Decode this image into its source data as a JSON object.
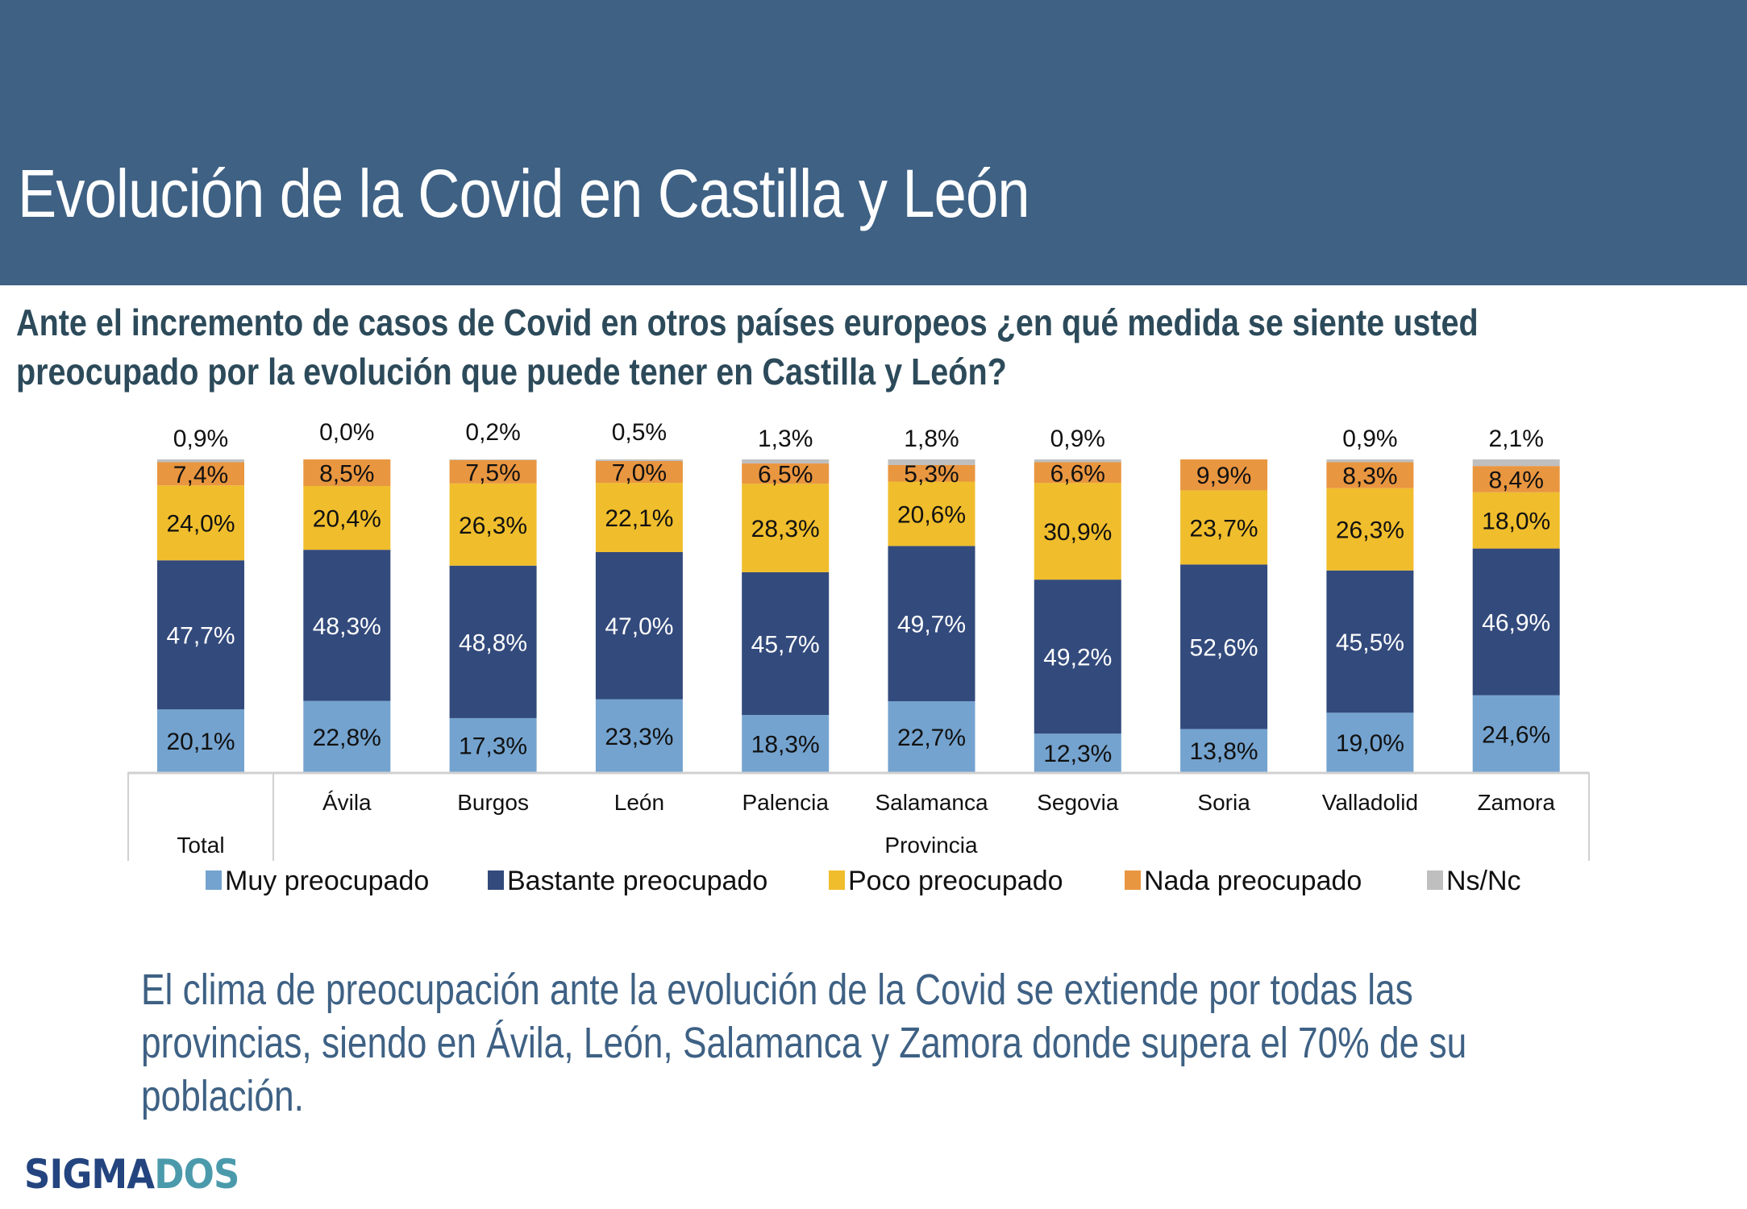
{
  "header": {
    "title": "Evolución de la Covid en Castilla y León"
  },
  "question": {
    "lines": [
      " Ante el incremento de casos de Covid en otros países europeos ¿en qué medida se siente usted",
      "preocupado por la evolución que puede tener en Castilla y León?"
    ]
  },
  "chart_data": {
    "type": "bar",
    "stacked": true,
    "normalized": true,
    "title": "",
    "xlabel": "",
    "ylabel": "",
    "ylim": [
      0,
      100
    ],
    "grid": false,
    "legend_position": "bottom",
    "categories": [
      "Total",
      "Ávila",
      "Burgos",
      "León",
      "Palencia",
      "Salamanca",
      "Segovia",
      "Soria",
      "Valladolid",
      "Zamora"
    ],
    "group_labels": [
      {
        "label": "Total",
        "categories": [
          "Total"
        ]
      },
      {
        "label": "Provincia",
        "categories": [
          "Ávila",
          "Burgos",
          "León",
          "Palencia",
          "Salamanca",
          "Segovia",
          "Soria",
          "Valladolid",
          "Zamora"
        ]
      }
    ],
    "series": [
      {
        "name": "Muy preocupado",
        "color": "#74a3cf",
        "label_color": "#111111",
        "values": [
          20.1,
          22.8,
          17.3,
          23.3,
          18.3,
          22.7,
          12.3,
          13.8,
          19.0,
          24.6
        ],
        "labels": [
          "20,1%",
          "22,8%",
          "17,3%",
          "23,3%",
          "18,3%",
          "22,7%",
          "12,3%",
          "13,8%",
          "19,0%",
          "24,6%"
        ]
      },
      {
        "name": "Bastante preocupado",
        "color": "#334a7c",
        "label_color": "#ffffff",
        "values": [
          47.7,
          48.3,
          48.8,
          47.0,
          45.7,
          49.7,
          49.2,
          52.6,
          45.5,
          46.9
        ],
        "labels": [
          "47,7%",
          "48,3%",
          "48,8%",
          "47,0%",
          "45,7%",
          "49,7%",
          "49,2%",
          "52,6%",
          "45,5%",
          "46,9%"
        ]
      },
      {
        "name": "Poco preocupado",
        "color": "#f0bd2c",
        "label_color": "#111111",
        "values": [
          24.0,
          20.4,
          26.3,
          22.1,
          28.3,
          20.6,
          30.9,
          23.7,
          26.3,
          18.0
        ],
        "labels": [
          "24,0%",
          "20,4%",
          "26,3%",
          "22,1%",
          "28,3%",
          "20,6%",
          "30,9%",
          "23,7%",
          "26,3%",
          "18,0%"
        ]
      },
      {
        "name": "Nada preocupado",
        "color": "#e99640",
        "label_color": "#111111",
        "values": [
          7.4,
          8.5,
          7.5,
          7.0,
          6.5,
          5.3,
          6.6,
          9.9,
          8.3,
          8.4
        ],
        "labels": [
          "7,4%",
          "8,5%",
          "7,5%",
          "7,0%",
          "6,5%",
          "5,3%",
          "6,6%",
          "9,9%",
          "8,3%",
          "8,4%"
        ]
      },
      {
        "name": "Ns/Nc",
        "color": "#bfbfbf",
        "label_color": "#111111",
        "values": [
          0.9,
          0.0,
          0.2,
          0.5,
          1.3,
          1.8,
          0.9,
          0.0,
          0.9,
          2.1
        ],
        "labels": [
          "0,9%",
          "0,0%",
          "0,2%",
          "0,5%",
          "1,3%",
          "1,8%",
          "0,9%",
          "",
          "0,9%",
          "2,1%"
        ]
      }
    ]
  },
  "conclusion": {
    "lines": [
      "El clima de preocupación ante la evolución de la Covid se extiende por todas las",
      "provincias, siendo en Ávila, León, Salamanca y Zamora donde supera el 70% de su",
      "población."
    ]
  },
  "logo": {
    "part1": "SIGMA",
    "part2": "DOS"
  }
}
